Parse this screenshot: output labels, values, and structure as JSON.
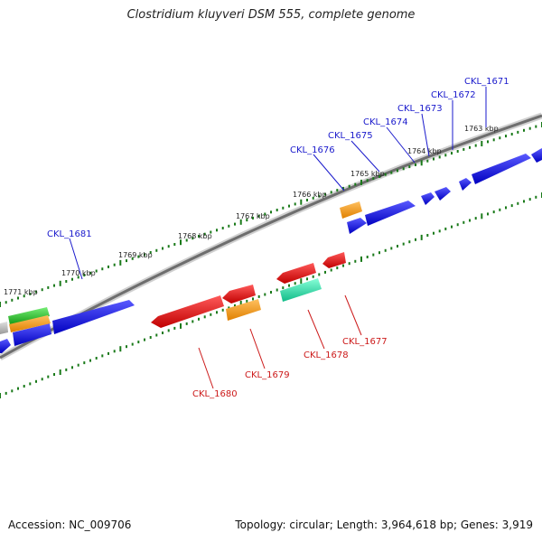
{
  "header": {
    "title": "Clostridium kluyveri DSM 555, complete genome"
  },
  "footer": {
    "accession": "Accession: NC_009706",
    "topology": "Topology: circular; Length: 3,964,618 bp; Genes: 3,919"
  },
  "colors": {
    "backbone": "#8a8a8a",
    "tick": "#1a7a1a",
    "forward_label": "#1a1acc",
    "reverse_label": "#cc1a1a",
    "blue": "#1010e0",
    "red": "#ee1111",
    "orange": "#ff9900",
    "green": "#22bb22",
    "teal": "#22ddaa",
    "grey": "#bbbbbb"
  },
  "kbp_labels": [
    "1763 kbp",
    "1764 kbp",
    "1765 kbp",
    "1766 kbp",
    "1767 kbp",
    "1768 kbp",
    "1769 kbp",
    "1770 kbp",
    "1771 kbp"
  ],
  "forward_genes": [
    "CKL_1671",
    "CKL_1672",
    "CKL_1673",
    "CKL_1674",
    "CKL_1675",
    "CKL_1676",
    "CKL_1681"
  ],
  "reverse_genes": [
    "CKL_1677",
    "CKL_1678",
    "CKL_1679",
    "CKL_1680"
  ]
}
